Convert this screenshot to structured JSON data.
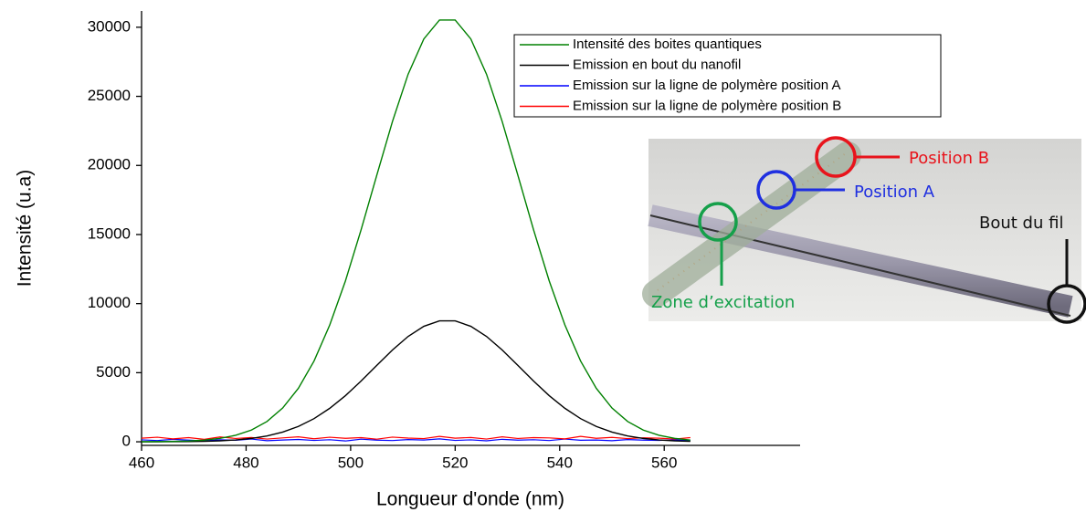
{
  "chart_data": {
    "type": "line",
    "x_label": "Longueur d'onde (nm)",
    "y_label": "Intensité (u.a)",
    "x": [
      460,
      463,
      466,
      469,
      472,
      475,
      478,
      481,
      484,
      487,
      490,
      493,
      496,
      499,
      502,
      505,
      508,
      511,
      514,
      517,
      520,
      523,
      526,
      529,
      532,
      535,
      538,
      541,
      544,
      547,
      550,
      553,
      556,
      559,
      562,
      565
    ],
    "series": [
      {
        "name": "Intensité des boites quantiques",
        "color": "#008000",
        "values": [
          5,
          12,
          27,
          59,
          123,
          245,
          470,
          847,
          1470,
          2446,
          3873,
          5844,
          8449,
          11637,
          15342,
          19288,
          23178,
          26600,
          29153,
          30526,
          30526,
          29153,
          26600,
          23178,
          19288,
          15342,
          11637,
          8449,
          5844,
          3873,
          2446,
          1470,
          847,
          470,
          245,
          123
        ]
      },
      {
        "name": "Emission en bout du nanofil",
        "color": "#000000",
        "values": [
          1,
          3,
          8,
          17,
          35,
          70,
          135,
          243,
          421,
          701,
          1110,
          1675,
          2422,
          3335,
          4397,
          5528,
          6643,
          7624,
          8356,
          8749,
          8749,
          8356,
          7624,
          6643,
          5528,
          4397,
          3335,
          2422,
          1675,
          1110,
          701,
          421,
          243,
          135,
          70,
          35
        ]
      },
      {
        "name": "Emission sur la ligne de polymère position A",
        "color": "#0000ff",
        "values": [
          140,
          90,
          180,
          120,
          60,
          150,
          110,
          200,
          80,
          130,
          170,
          100,
          150,
          60,
          190,
          120,
          90,
          160,
          130,
          210,
          100,
          140,
          70,
          180,
          120,
          150,
          90,
          200,
          110,
          130,
          80,
          160,
          120,
          100,
          140,
          90
        ]
      },
      {
        "name": "Emission sur la ligne de polymère position B",
        "color": "#ff0000",
        "values": [
          260,
          330,
          210,
          300,
          180,
          350,
          240,
          310,
          200,
          280,
          360,
          220,
          330,
          250,
          300,
          190,
          340,
          270,
          230,
          390,
          260,
          310,
          200,
          360,
          240,
          300,
          280,
          210,
          390,
          250,
          320,
          230,
          290,
          260,
          200,
          300
        ]
      }
    ],
    "xlim": [
      460,
      586
    ],
    "ylim": [
      -260,
      31180
    ],
    "xticks": [
      460,
      480,
      500,
      520,
      540,
      560
    ],
    "yticks": [
      0,
      5000,
      10000,
      15000,
      20000,
      25000,
      30000
    ],
    "grid": false,
    "legend": "upper right"
  },
  "inset": {
    "labels": [
      "Position B",
      "Position A",
      "Bout du fil",
      "Zone d’excitation"
    ],
    "colors": [
      "#e8141c",
      "#1f2fe0",
      "#111111",
      "#15a04a"
    ]
  }
}
